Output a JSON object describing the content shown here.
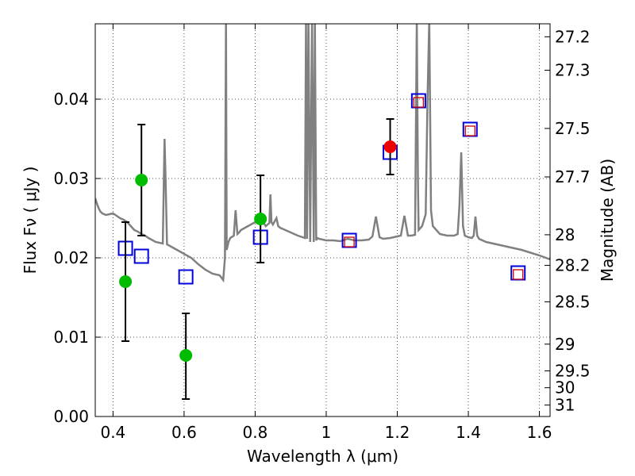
{
  "chart_data": {
    "type": "line",
    "xlabel": "Wavelength  λ (μm)",
    "ylabel": "Flux  Fν  ( μJy )",
    "y2label": "Magnitude (AB)",
    "xlim": [
      0.35,
      1.63
    ],
    "ylim": [
      0.0,
      0.0495
    ],
    "grid": true,
    "x_ticks": [
      {
        "value": 0.4,
        "label": "0.4"
      },
      {
        "value": 0.6,
        "label": "0.6"
      },
      {
        "value": 0.8,
        "label": "0.8"
      },
      {
        "value": 1.0,
        "label": "1"
      },
      {
        "value": 1.2,
        "label": "1.2"
      },
      {
        "value": 1.4,
        "label": "1.4"
      },
      {
        "value": 1.6,
        "label": "1.6"
      }
    ],
    "y_ticks": [
      {
        "value": 0.0,
        "label": "0.00"
      },
      {
        "value": 0.01,
        "label": "0.01"
      },
      {
        "value": 0.02,
        "label": "0.02"
      },
      {
        "value": 0.03,
        "label": "0.03"
      },
      {
        "value": 0.04,
        "label": "0.04"
      }
    ],
    "mag_ticks": [
      {
        "mag": 27.2,
        "label": "27.2"
      },
      {
        "mag": 27.3,
        "label": "27.3"
      },
      {
        "mag": 27.5,
        "label": "27.5"
      },
      {
        "mag": 27.7,
        "label": "27.7"
      },
      {
        "mag": 28.0,
        "label": "28"
      },
      {
        "mag": 28.2,
        "label": "28.2"
      },
      {
        "mag": 28.5,
        "label": "28.5"
      },
      {
        "mag": 29.0,
        "label": "29"
      },
      {
        "mag": 29.5,
        "label": "29.5"
      },
      {
        "mag": 30.0,
        "label": "30"
      },
      {
        "mag": 31.0,
        "label": "31"
      }
    ],
    "colors": {
      "model": "#808080",
      "green": "#00bb00",
      "red": "#ee0000",
      "blue_square": "#0000dd",
      "red_square": "#cc0000",
      "grid": "#555555"
    },
    "series": [
      {
        "kind": "model_spectrum",
        "x": [
          0.35,
          0.355,
          0.36,
          0.365,
          0.37,
          0.38,
          0.39,
          0.4,
          0.41,
          0.42,
          0.43,
          0.44,
          0.45,
          0.46,
          0.47,
          0.48,
          0.49,
          0.5,
          0.52,
          0.54,
          0.545,
          0.548,
          0.552,
          0.56,
          0.58,
          0.6,
          0.62,
          0.64,
          0.66,
          0.68,
          0.7,
          0.71,
          0.715,
          0.718,
          0.72,
          0.725,
          0.73,
          0.74,
          0.745,
          0.75,
          0.755,
          0.76,
          0.78,
          0.8,
          0.81,
          0.815,
          0.82,
          0.83,
          0.84,
          0.843,
          0.846,
          0.85,
          0.86,
          0.865,
          0.87,
          0.88,
          0.9,
          0.92,
          0.94,
          0.943,
          0.946,
          0.95,
          0.955,
          0.96,
          0.965,
          0.968,
          0.972,
          0.975,
          0.98,
          1.0,
          1.02,
          1.04,
          1.06,
          1.08,
          1.1,
          1.12,
          1.13,
          1.14,
          1.15,
          1.16,
          1.18,
          1.2,
          1.21,
          1.22,
          1.23,
          1.24,
          1.25,
          1.255,
          1.258,
          1.26,
          1.27,
          1.28,
          1.285,
          1.29,
          1.295,
          1.3,
          1.32,
          1.34,
          1.36,
          1.37,
          1.375,
          1.38,
          1.385,
          1.39,
          1.4,
          1.41,
          1.415,
          1.42,
          1.425,
          1.43,
          1.45,
          1.5,
          1.55,
          1.6,
          1.63
        ],
        "y": [
          0.0275,
          0.0268,
          0.0262,
          0.0258,
          0.0256,
          0.0254,
          0.0255,
          0.0256,
          0.0253,
          0.025,
          0.0248,
          0.0245,
          0.024,
          0.0235,
          0.0233,
          0.023,
          0.0228,
          0.0225,
          0.022,
          0.0218,
          0.035,
          0.03,
          0.0217,
          0.0215,
          0.021,
          0.0205,
          0.02,
          0.0192,
          0.0185,
          0.018,
          0.0178,
          0.0172,
          0.02,
          0.05,
          0.021,
          0.022,
          0.0225,
          0.0228,
          0.026,
          0.023,
          0.0232,
          0.0235,
          0.024,
          0.0245,
          0.0247,
          0.025,
          0.0246,
          0.024,
          0.0244,
          0.028,
          0.0245,
          0.0242,
          0.025,
          0.024,
          0.0238,
          0.0236,
          0.0232,
          0.0228,
          0.0225,
          0.05,
          0.0224,
          0.05,
          0.022,
          0.05,
          0.022,
          0.05,
          0.0222,
          0.0225,
          0.0224,
          0.0222,
          0.0222,
          0.0221,
          0.0224,
          0.0222,
          0.0222,
          0.0223,
          0.0227,
          0.0252,
          0.0226,
          0.0224,
          0.0225,
          0.0227,
          0.0228,
          0.0253,
          0.0228,
          0.0228,
          0.0229,
          0.05,
          0.03,
          0.0235,
          0.024,
          0.0255,
          0.04,
          0.05,
          0.026,
          0.024,
          0.023,
          0.0228,
          0.0228,
          0.023,
          0.0265,
          0.0333,
          0.024,
          0.0228,
          0.0226,
          0.0225,
          0.0228,
          0.0252,
          0.0228,
          0.0224,
          0.022,
          0.0215,
          0.021,
          0.0203,
          0.0198
        ]
      },
      {
        "kind": "green_points",
        "points": [
          {
            "x": 0.435,
            "y": 0.017,
            "ylo": 0.0095,
            "yhi": 0.0245
          },
          {
            "x": 0.48,
            "y": 0.0298,
            "ylo": 0.0228,
            "yhi": 0.0368
          },
          {
            "x": 0.605,
            "y": 0.0077,
            "ylo": 0.0022,
            "yhi": 0.013
          },
          {
            "x": 0.815,
            "y": 0.0249,
            "ylo": 0.0194,
            "yhi": 0.0304
          }
        ]
      },
      {
        "kind": "red_points",
        "points": [
          {
            "x": 1.18,
            "y": 0.034,
            "ylo": 0.0305,
            "yhi": 0.0375
          }
        ]
      },
      {
        "kind": "blue_squares",
        "points": [
          {
            "x": 0.435,
            "y": 0.0212
          },
          {
            "x": 0.48,
            "y": 0.0202
          },
          {
            "x": 0.605,
            "y": 0.0176
          },
          {
            "x": 0.815,
            "y": 0.0226
          },
          {
            "x": 1.065,
            "y": 0.0222
          },
          {
            "x": 1.18,
            "y": 0.0333
          },
          {
            "x": 1.26,
            "y": 0.0398
          },
          {
            "x": 1.405,
            "y": 0.0362
          },
          {
            "x": 1.54,
            "y": 0.0181
          }
        ]
      },
      {
        "kind": "red_squares",
        "points": [
          {
            "x": 1.065,
            "y": 0.022
          },
          {
            "x": 1.26,
            "y": 0.0396
          },
          {
            "x": 1.405,
            "y": 0.036
          },
          {
            "x": 1.54,
            "y": 0.0179
          }
        ]
      }
    ]
  }
}
